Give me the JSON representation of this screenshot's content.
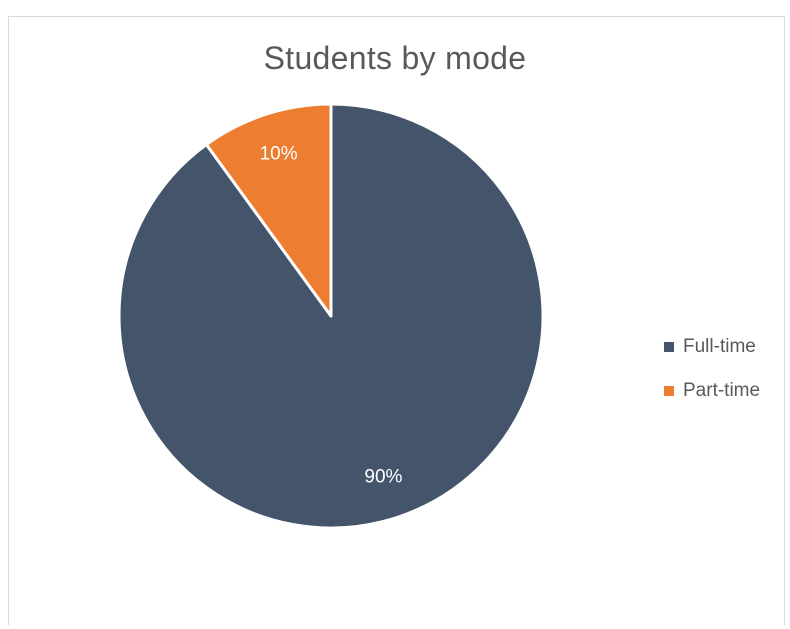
{
  "chart_data": {
    "type": "pie",
    "title": "Students by mode",
    "categories": [
      "Full-time",
      "Part-time"
    ],
    "values": [
      90,
      10
    ],
    "data_labels": [
      "90%",
      "10%"
    ],
    "colors": [
      "#44546a",
      "#ed7d31"
    ],
    "legend_position": "right"
  }
}
